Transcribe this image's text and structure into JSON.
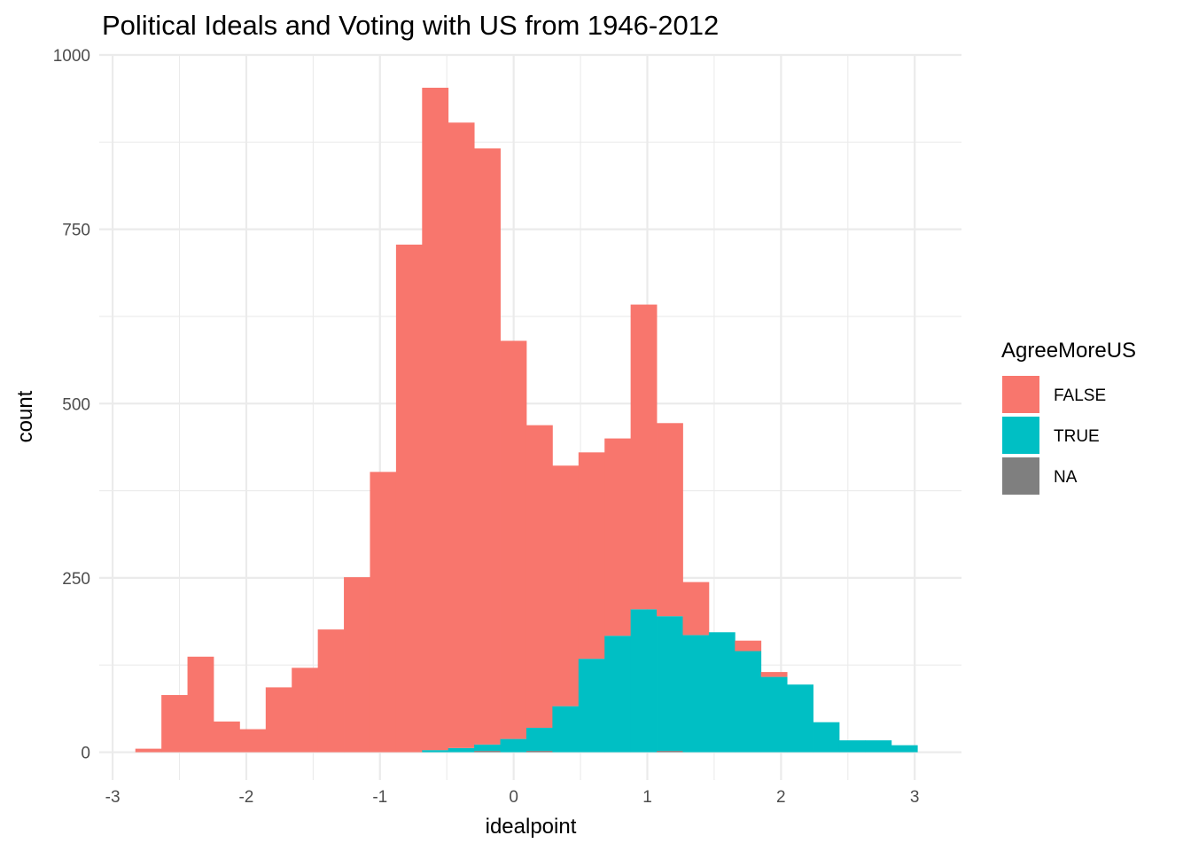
{
  "chart_data": {
    "type": "histogram",
    "title": "Political Ideals and Voting with US from 1946-2012",
    "xlabel": "idealpoint",
    "ylabel": "count",
    "xlim": [
      -3.1,
      3.35
    ],
    "ylim": [
      -40,
      1000
    ],
    "x_ticks": [
      -3,
      -2,
      -1,
      0,
      1,
      2,
      3
    ],
    "x_tick_labels": [
      "-3",
      "-2",
      "-1",
      "0",
      "1",
      "2",
      "3"
    ],
    "y_ticks": [
      0,
      250,
      500,
      750,
      1000
    ],
    "y_tick_labels": [
      "0",
      "250",
      "500",
      "750",
      "1000"
    ],
    "grid": true,
    "stacked": true,
    "bin_starts": [
      -2.83,
      -2.635,
      -2.44,
      -2.245,
      -2.05,
      -1.855,
      -1.66,
      -1.465,
      -1.27,
      -1.075,
      -0.88,
      -0.685,
      -0.49,
      -0.295,
      -0.1,
      0.095,
      0.29,
      0.485,
      0.68,
      0.875,
      1.07,
      1.265,
      1.46,
      1.655,
      1.85,
      2.045,
      2.24,
      2.435,
      2.63,
      2.825
    ],
    "bin_width": 0.195,
    "legend": {
      "title": "AgreeMoreUS",
      "position": "right",
      "items": [
        {
          "label": "FALSE",
          "color": "#F8766D"
        },
        {
          "label": "TRUE",
          "color": "#00BFC4"
        },
        {
          "label": "NA",
          "color": "#7F7F7F"
        }
      ]
    },
    "series": [
      {
        "name": "FALSE",
        "color": "#F8766D",
        "values": [
          5,
          82,
          137,
          44,
          33,
          93,
          121,
          176,
          251,
          402,
          728,
          950,
          897,
          855,
          571,
          434,
          345,
          296,
          283,
          437,
          277,
          76,
          0,
          15,
          7,
          0,
          0,
          0,
          0,
          0
        ]
      },
      {
        "name": "TRUE",
        "color": "#00BFC4",
        "values": [
          0,
          0,
          0,
          0,
          0,
          0,
          0,
          0,
          0,
          0,
          0,
          3,
          6,
          9,
          19,
          33,
          66,
          134,
          167,
          205,
          193,
          168,
          172,
          145,
          108,
          97,
          43,
          17,
          17,
          10
        ]
      },
      {
        "name": "NA",
        "color": "#7F7F7F",
        "values": [
          0,
          0,
          0,
          0,
          0,
          0,
          0,
          0,
          0,
          0,
          0,
          0,
          0,
          2,
          0,
          2,
          0,
          0,
          0,
          0,
          2,
          0,
          0,
          0,
          0,
          0,
          0,
          0,
          0,
          0
        ]
      }
    ]
  }
}
